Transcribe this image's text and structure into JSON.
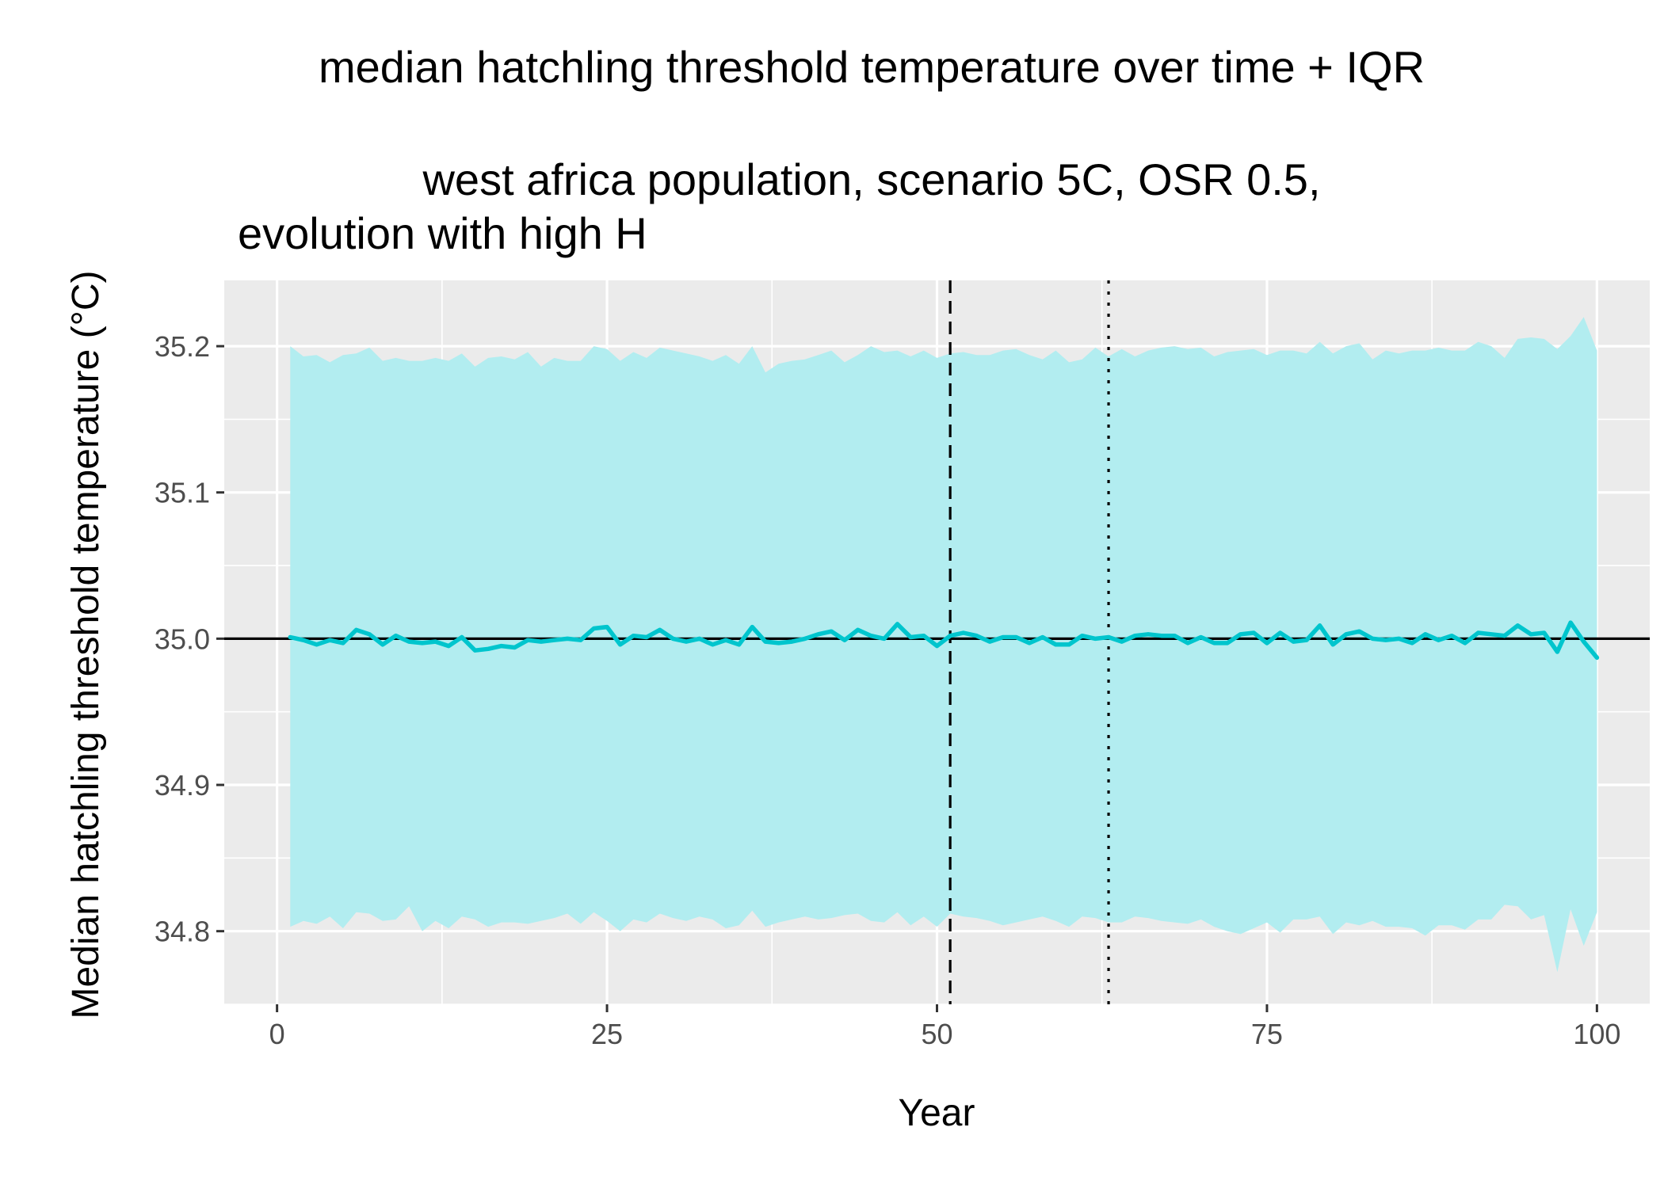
{
  "chart_data": {
    "type": "area",
    "title": "median hatchling threshold temperature over time + IQR",
    "subtitle_lines": [
      "west africa population, scenario 5C, OSR 0.5,",
      "evolution with high H"
    ],
    "xlabel": "Year",
    "ylabel": "Median hatchling threshold temperature (°C)",
    "xlim": [
      -4,
      104
    ],
    "ylim": [
      34.75,
      35.245
    ],
    "x_ticks": [
      0,
      25,
      50,
      75,
      100
    ],
    "x_tick_labels": [
      "0",
      "25",
      "50",
      "75",
      "100"
    ],
    "y_ticks": [
      34.8,
      34.9,
      35.0,
      35.1,
      35.2
    ],
    "y_tick_labels": [
      "34.8",
      "34.9",
      "35.0",
      "35.1",
      "35.2"
    ],
    "grid": true,
    "legend": "none",
    "x": [
      1,
      2,
      3,
      4,
      5,
      6,
      7,
      8,
      9,
      10,
      11,
      12,
      13,
      14,
      15,
      16,
      17,
      18,
      19,
      20,
      21,
      22,
      23,
      24,
      25,
      26,
      27,
      28,
      29,
      30,
      31,
      32,
      33,
      34,
      35,
      36,
      37,
      38,
      39,
      40,
      41,
      42,
      43,
      44,
      45,
      46,
      47,
      48,
      49,
      50,
      51,
      52,
      53,
      54,
      55,
      56,
      57,
      58,
      59,
      60,
      61,
      62,
      63,
      64,
      65,
      66,
      67,
      68,
      69,
      70,
      71,
      72,
      73,
      74,
      75,
      76,
      77,
      78,
      79,
      80,
      81,
      82,
      83,
      84,
      85,
      86,
      87,
      88,
      89,
      90,
      91,
      92,
      93,
      94,
      95,
      96,
      97,
      98,
      99,
      100
    ],
    "series": [
      {
        "role": "median",
        "values": [
          35.001,
          34.999,
          34.996,
          34.999,
          34.997,
          35.006,
          35.003,
          34.996,
          35.002,
          34.998,
          34.997,
          34.998,
          34.995,
          35.001,
          34.992,
          34.993,
          34.995,
          34.994,
          34.999,
          34.998,
          34.999,
          35.0,
          34.999,
          35.007,
          35.008,
          34.996,
          35.002,
          35.001,
          35.006,
          35.0,
          34.998,
          35.0,
          34.996,
          34.999,
          34.996,
          35.008,
          34.998,
          34.997,
          34.998,
          35.0,
          35.003,
          35.005,
          34.999,
          35.006,
          35.002,
          35.0,
          35.01,
          35.001,
          35.002,
          34.995,
          35.002,
          35.004,
          35.002,
          34.998,
          35.001,
          35.001,
          34.997,
          35.001,
          34.996,
          34.996,
          35.002,
          35.0,
          35.001,
          34.998,
          35.002,
          35.003,
          35.002,
          35.002,
          34.997,
          35.001,
          34.997,
          34.997,
          35.003,
          35.004,
          34.997,
          35.004,
          34.998,
          34.999,
          35.009,
          34.996,
          35.003,
          35.005,
          35.0,
          34.999,
          35.0,
          34.997,
          35.003,
          34.999,
          35.002,
          34.997,
          35.004,
          35.003,
          35.002,
          35.009,
          35.003,
          35.004,
          34.991,
          35.011,
          34.998,
          34.987
        ]
      },
      {
        "role": "q25",
        "values": [
          34.803,
          34.807,
          34.805,
          34.81,
          34.802,
          34.813,
          34.812,
          34.807,
          34.808,
          34.817,
          34.8,
          34.807,
          34.802,
          34.81,
          34.808,
          34.803,
          34.806,
          34.806,
          34.805,
          34.807,
          34.809,
          34.812,
          34.805,
          34.813,
          34.807,
          34.8,
          34.808,
          34.806,
          34.812,
          34.809,
          34.807,
          34.81,
          34.808,
          34.802,
          34.804,
          34.814,
          34.803,
          34.806,
          34.808,
          34.81,
          34.808,
          34.809,
          34.811,
          34.812,
          34.807,
          34.806,
          34.813,
          34.804,
          34.81,
          34.803,
          34.812,
          34.81,
          34.809,
          34.807,
          34.804,
          34.806,
          34.808,
          34.81,
          34.807,
          34.803,
          34.81,
          34.809,
          34.806,
          34.806,
          34.81,
          34.809,
          34.807,
          34.806,
          34.805,
          34.808,
          34.803,
          34.8,
          34.798,
          34.802,
          34.806,
          34.799,
          34.808,
          34.808,
          34.81,
          34.798,
          34.806,
          34.804,
          34.807,
          34.803,
          34.803,
          34.802,
          34.797,
          34.804,
          34.804,
          34.801,
          34.808,
          34.808,
          34.818,
          34.817,
          34.808,
          34.811,
          34.772,
          34.815,
          34.79,
          34.813
        ]
      },
      {
        "role": "q75",
        "values": [
          35.2,
          35.193,
          35.194,
          35.189,
          35.194,
          35.195,
          35.199,
          35.19,
          35.192,
          35.19,
          35.19,
          35.192,
          35.19,
          35.195,
          35.186,
          35.192,
          35.193,
          35.191,
          35.196,
          35.186,
          35.192,
          35.19,
          35.19,
          35.2,
          35.198,
          35.19,
          35.196,
          35.192,
          35.199,
          35.197,
          35.195,
          35.193,
          35.19,
          35.194,
          35.188,
          35.2,
          35.182,
          35.188,
          35.19,
          35.191,
          35.194,
          35.197,
          35.189,
          35.194,
          35.2,
          35.196,
          35.197,
          35.193,
          35.197,
          35.192,
          35.195,
          35.196,
          35.194,
          35.194,
          35.197,
          35.198,
          35.194,
          35.191,
          35.197,
          35.189,
          35.191,
          35.199,
          35.193,
          35.198,
          35.193,
          35.197,
          35.199,
          35.2,
          35.198,
          35.199,
          35.193,
          35.196,
          35.197,
          35.198,
          35.194,
          35.197,
          35.197,
          35.195,
          35.203,
          35.195,
          35.2,
          35.202,
          35.191,
          35.197,
          35.195,
          35.197,
          35.197,
          35.199,
          35.197,
          35.197,
          35.203,
          35.2,
          35.192,
          35.205,
          35.206,
          35.205,
          35.198,
          35.207,
          35.22,
          35.197
        ]
      }
    ],
    "reference_lines": [
      {
        "orientation": "horizontal",
        "value": 35.0,
        "style": "solid"
      },
      {
        "orientation": "vertical",
        "value": 51,
        "style": "dashed"
      },
      {
        "orientation": "vertical",
        "value": 63,
        "style": "dotted"
      }
    ],
    "colors": {
      "line": "#00C5CD",
      "ribbon": "#B2EDF0",
      "panel": "#EBEBEB",
      "grid": "#FFFFFF",
      "reference": "#000000",
      "axis_text": "#4D4D4D",
      "label_text": "#000000"
    }
  }
}
